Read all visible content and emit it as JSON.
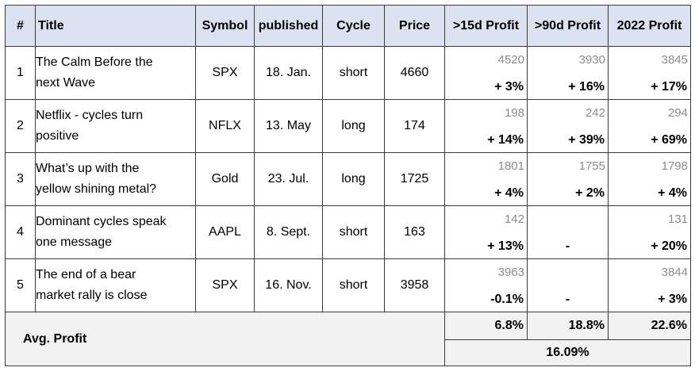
{
  "headers": {
    "num": "#",
    "title": "Title",
    "symbol": "Symbol",
    "published": "published",
    "cycle": "Cycle",
    "price": "Price",
    "p15": ">15d Profit",
    "p90": ">90d Profit",
    "p2022": "2022 Profit"
  },
  "rows": [
    {
      "num": "1",
      "title_l1": "The Calm Before the",
      "title_l2": "next Wave",
      "symbol": "SPX",
      "published": "18. Jan.",
      "cycle": "short",
      "price": "4660",
      "p15_ref": "4520",
      "p15": "+ 3%",
      "p90_ref": "3930",
      "p90": "+ 16%",
      "p2022_ref": "3845",
      "p2022": "+ 17%"
    },
    {
      "num": "2",
      "title_l1": "Netflix - cycles turn",
      "title_l2": "positive",
      "symbol": "NFLX",
      "published": "13. May",
      "cycle": "long",
      "price": "174",
      "p15_ref": "198",
      "p15": "+ 14%",
      "p90_ref": "242",
      "p90": "+ 39%",
      "p2022_ref": "294",
      "p2022": "+ 69%"
    },
    {
      "num": "3",
      "title_l1": "What’s up with the",
      "title_l2": "yellow shining metal?",
      "symbol": "Gold",
      "published": "23. Jul.",
      "cycle": "long",
      "price": "1725",
      "p15_ref": "1801",
      "p15": "+ 4%",
      "p90_ref": "1755",
      "p90": "+ 2%",
      "p2022_ref": "1798",
      "p2022": "+ 4%"
    },
    {
      "num": "4",
      "title_l1": "Dominant cycles speak",
      "title_l2": "one message",
      "symbol": "AAPL",
      "published": "8. Sept.",
      "cycle": "short",
      "price": "163",
      "p15_ref": "142",
      "p15": "+ 13%",
      "p90_ref": "",
      "p90": "-",
      "p2022_ref": "131",
      "p2022": "+ 20%"
    },
    {
      "num": "5",
      "title_l1": "The end of a bear",
      "title_l2": "market rally is close",
      "symbol": "SPX",
      "published": "16. Nov.",
      "cycle": "short",
      "price": "3958",
      "p15_ref": "3963",
      "p15": "-0.1%",
      "p90_ref": "",
      "p90": "-",
      "p2022_ref": "3844",
      "p2022": "+ 3%"
    }
  ],
  "avg": {
    "label": "Avg. Profit",
    "p15": "6.8%",
    "p90": "18.8%",
    "p2022": "22.6%",
    "total": "16.09%"
  }
}
